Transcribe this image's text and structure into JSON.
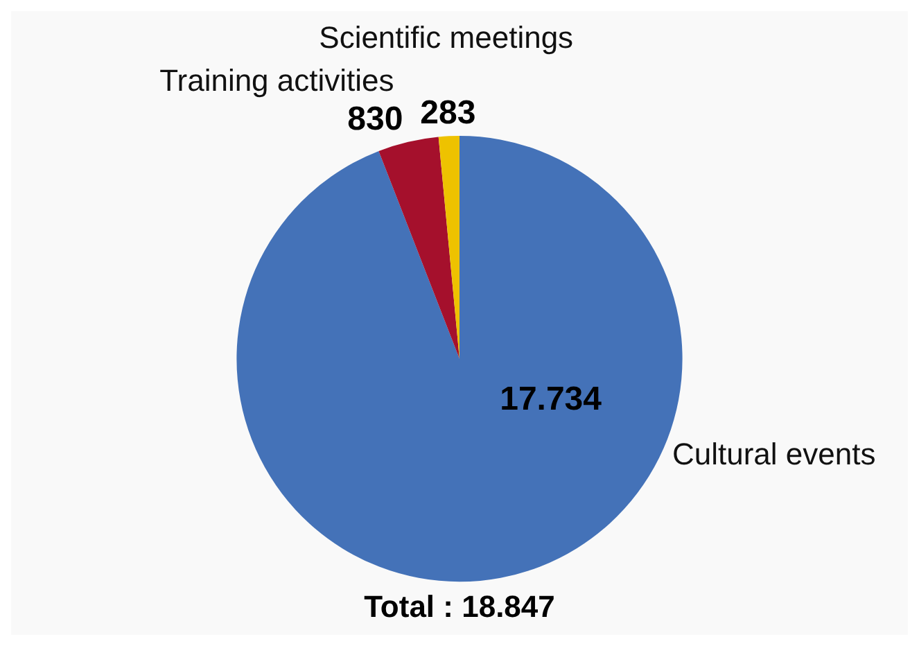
{
  "chart_data": {
    "type": "pie",
    "title": "Total : 18.847",
    "categories": [
      "Cultural events",
      "Training activities",
      "Scientific meetings"
    ],
    "values": [
      17734,
      830,
      283
    ],
    "value_labels": [
      "17.734",
      "830",
      "283"
    ],
    "colors": [
      "#4472b8",
      "#a5102c",
      "#eec200"
    ],
    "legend": false
  }
}
